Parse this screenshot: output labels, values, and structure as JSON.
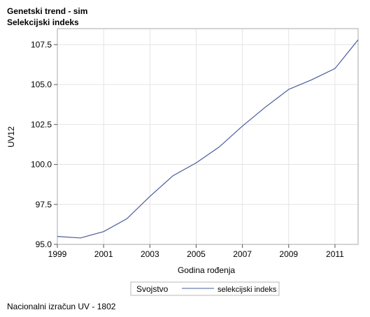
{
  "titles": [
    "Genetski trend - sim",
    "Selekcijski indeks"
  ],
  "footnote": "Nacionalni izračun UV - 1802",
  "chart_data": {
    "type": "line",
    "title": "Genetski trend - sim",
    "subtitle": "Selekcijski indeks",
    "xlabel": "Godina rođenja",
    "ylabel": "UV12",
    "xlim": [
      1999,
      2012
    ],
    "ylim": [
      95.0,
      108.5
    ],
    "xticks": [
      1999,
      2001,
      2003,
      2005,
      2007,
      2009,
      2011
    ],
    "yticks": [
      95.0,
      97.5,
      100.0,
      102.5,
      105.0,
      107.5
    ],
    "ytick_labels": [
      "95.0",
      "97.5",
      "100.0",
      "102.5",
      "105.0",
      "107.5"
    ],
    "grid": true,
    "legend": {
      "title": "Svojstvo",
      "position": "bottom-center"
    },
    "series": [
      {
        "name": "selekcijski indeks",
        "color": "#4a5b9c",
        "x": [
          1999,
          2000,
          2001,
          2002,
          2003,
          2004,
          2005,
          2006,
          2007,
          2008,
          2009,
          2010,
          2011,
          2012
        ],
        "y": [
          95.5,
          95.4,
          95.8,
          96.6,
          98.0,
          99.3,
          100.1,
          101.1,
          102.4,
          103.6,
          104.7,
          105.3,
          106.0,
          107.8
        ]
      }
    ]
  }
}
